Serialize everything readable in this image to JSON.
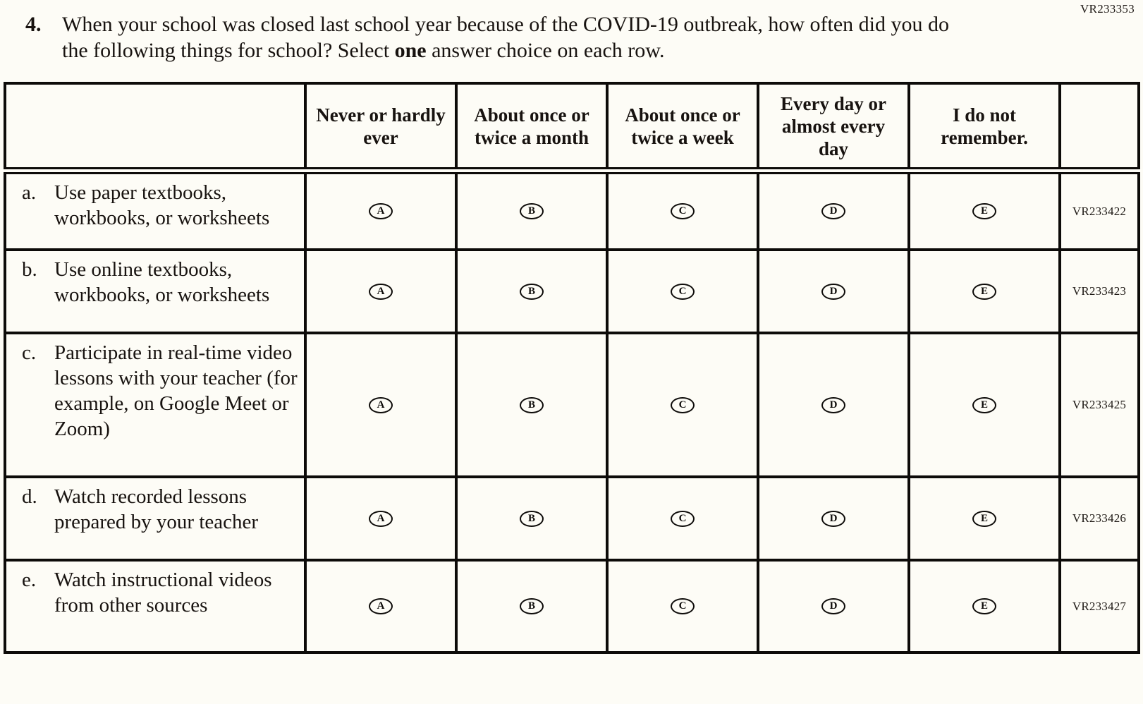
{
  "page": {
    "form_code_top": "VR233353"
  },
  "question": {
    "number": "4.",
    "text_part1": "When your school was closed last school year because of the COVID-19 outbreak, how often did you do the following things for school? Select ",
    "bold_word": "one",
    "text_part2": " answer choice on each row."
  },
  "table": {
    "column_headers": [
      "",
      "Never or hardly ever",
      "About once or twice a month",
      "About once or twice a week",
      "Every day or almost every day",
      "I do not remember.",
      ""
    ],
    "options": [
      "A",
      "B",
      "C",
      "D",
      "E"
    ],
    "rows": [
      {
        "letter": "a.",
        "label": "Use paper textbooks, workbooks, or worksheets",
        "code": "VR233422"
      },
      {
        "letter": "b.",
        "label": "Use online textbooks, workbooks, or worksheets",
        "code": "VR233423"
      },
      {
        "letter": "c.",
        "label": "Participate in real-time video lessons with your teacher (for example, on Google Meet or Zoom)",
        "code": "VR233425"
      },
      {
        "letter": "d.",
        "label": "Watch recorded lessons prepared by your teacher",
        "code": "VR233426"
      },
      {
        "letter": "e.",
        "label": "Watch instructional videos from other sources",
        "code": "VR233427"
      }
    ]
  }
}
